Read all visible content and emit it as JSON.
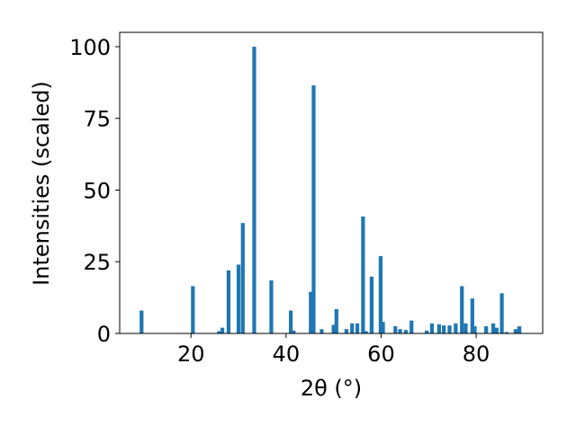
{
  "chart_data": {
    "type": "bar",
    "title": "",
    "xlabel": "2θ (°)",
    "ylabel": "Intensities (scaled)",
    "xlim": [
      5,
      94
    ],
    "ylim": [
      0,
      105
    ],
    "xticks": [
      20,
      40,
      60,
      80
    ],
    "yticks": [
      0,
      25,
      50,
      75,
      100
    ],
    "x_tick_labels": [
      "20",
      "40",
      "60",
      "80"
    ],
    "y_tick_labels": [
      "0",
      "25",
      "50",
      "75",
      "100"
    ],
    "grid": false,
    "legend": "none",
    "bar_color": "#1f77b4",
    "bar_width": 0.8,
    "x": [
      9.6,
      20.4,
      25.9,
      26.6,
      27.9,
      30.0,
      30.9,
      33.3,
      36.9,
      41.0,
      41.6,
      45.2,
      45.8,
      47.5,
      50.0,
      50.6,
      52.7,
      53.9,
      55.0,
      56.2,
      56.8,
      58.0,
      59.9,
      60.4,
      63.0,
      64.0,
      65.2,
      66.4,
      69.6,
      70.7,
      72.2,
      73.2,
      74.4,
      75.7,
      77.0,
      77.8,
      79.2,
      79.7,
      82.1,
      83.6,
      84.3,
      85.4,
      86.4,
      88.3,
      89.1
    ],
    "y": [
      8.0,
      16.5,
      0.8,
      2.0,
      22.0,
      24.0,
      38.5,
      100.0,
      18.5,
      8.0,
      1.0,
      14.5,
      86.5,
      1.5,
      3.0,
      8.5,
      1.5,
      3.5,
      3.5,
      40.8,
      0.8,
      19.8,
      27.0,
      4.0,
      2.5,
      1.5,
      1.2,
      4.5,
      1.0,
      3.5,
      3.2,
      2.8,
      2.8,
      3.5,
      16.5,
      3.5,
      12.2,
      2.5,
      2.5,
      3.5,
      2.0,
      14.0,
      0.5,
      1.5,
      2.5
    ]
  }
}
